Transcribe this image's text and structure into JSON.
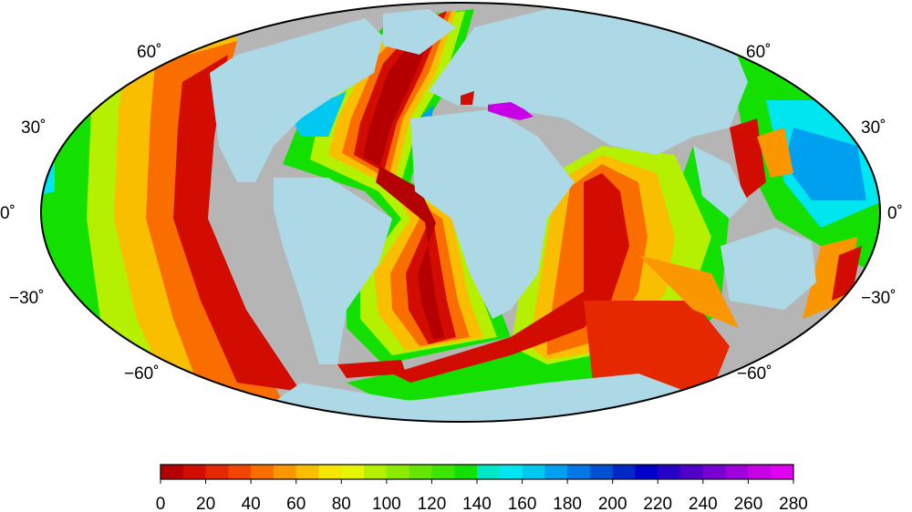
{
  "map": {
    "projection": "Mollweide",
    "colors": {
      "land": "#add8e6",
      "no_data": "#b5b5b5",
      "outline": "#000000"
    },
    "latitude_labels": {
      "left": [
        "60˚",
        "30˚",
        "0˚",
        "−30˚",
        "−60˚"
      ],
      "right": [
        "60˚",
        "30˚",
        "0˚",
        "−30˚",
        "−60˚"
      ]
    }
  },
  "colorbar": {
    "min": 0,
    "max": 280,
    "step": 10,
    "tick_labels": [
      "0",
      "20",
      "40",
      "60",
      "80",
      "100",
      "120",
      "140",
      "160",
      "180",
      "200",
      "220",
      "240",
      "260",
      "280"
    ],
    "colors": [
      "#b40000",
      "#d20c00",
      "#e62800",
      "#f04600",
      "#fa6e00",
      "#fa9600",
      "#fabe00",
      "#f5e600",
      "#e6f500",
      "#b4f000",
      "#8cec00",
      "#64e600",
      "#3ce600",
      "#14e000",
      "#00e6c8",
      "#00e6f0",
      "#00c8f0",
      "#00a0f0",
      "#0078e6",
      "#0050d2",
      "#0028c8",
      "#0000c8",
      "#2800c8",
      "#5000c8",
      "#7800d2",
      "#a000dc",
      "#c800e6",
      "#e100f0"
    ]
  }
}
